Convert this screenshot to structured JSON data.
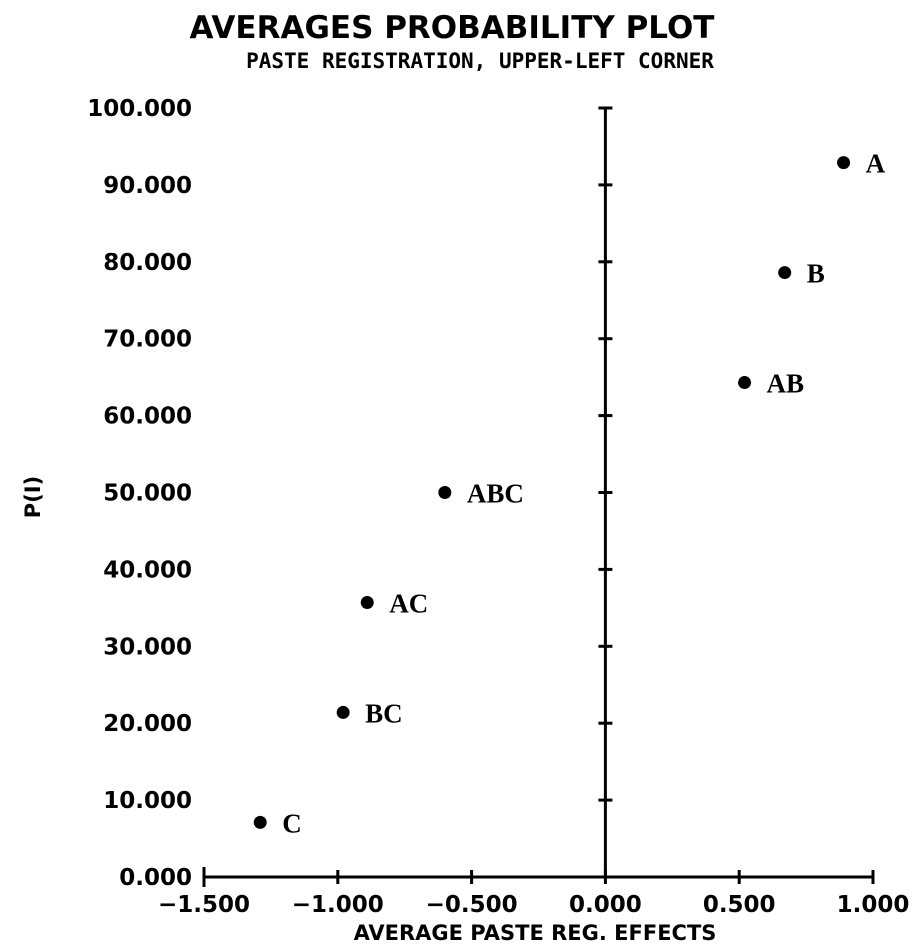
{
  "chart_data": {
    "type": "scatter",
    "title": "AVERAGES PROBABILITY PLOT",
    "subtitle": "PASTE REGISTRATION, UPPER-LEFT CORNER",
    "xlabel": "AVERAGE PASTE REG. EFFECTS",
    "ylabel": "P(I)",
    "xlim": [
      -1.5,
      1.0
    ],
    "ylim": [
      0,
      100
    ],
    "xticks": [
      "-1.500",
      "-1.000",
      "-0.500",
      "0.000",
      "0.500",
      "1.000"
    ],
    "yticks": [
      "0.000",
      "10.000",
      "20.000",
      "30.000",
      "40.000",
      "50.000",
      "60.000",
      "70.000",
      "80.000",
      "90.000",
      "100.000"
    ],
    "grid": false,
    "points": [
      {
        "label": "A",
        "x": 0.89,
        "y": 92.9
      },
      {
        "label": "B",
        "x": 0.67,
        "y": 78.6
      },
      {
        "label": "AB",
        "x": 0.52,
        "y": 64.3
      },
      {
        "label": "ABC",
        "x": -0.6,
        "y": 50.0
      },
      {
        "label": "AC",
        "x": -0.89,
        "y": 35.7
      },
      {
        "label": "BC",
        "x": -0.98,
        "y": 21.4
      },
      {
        "label": "C",
        "x": -1.29,
        "y": 7.1
      }
    ],
    "colors": {
      "marker": "#000000",
      "axis": "#000000",
      "background": "#ffffff"
    }
  }
}
